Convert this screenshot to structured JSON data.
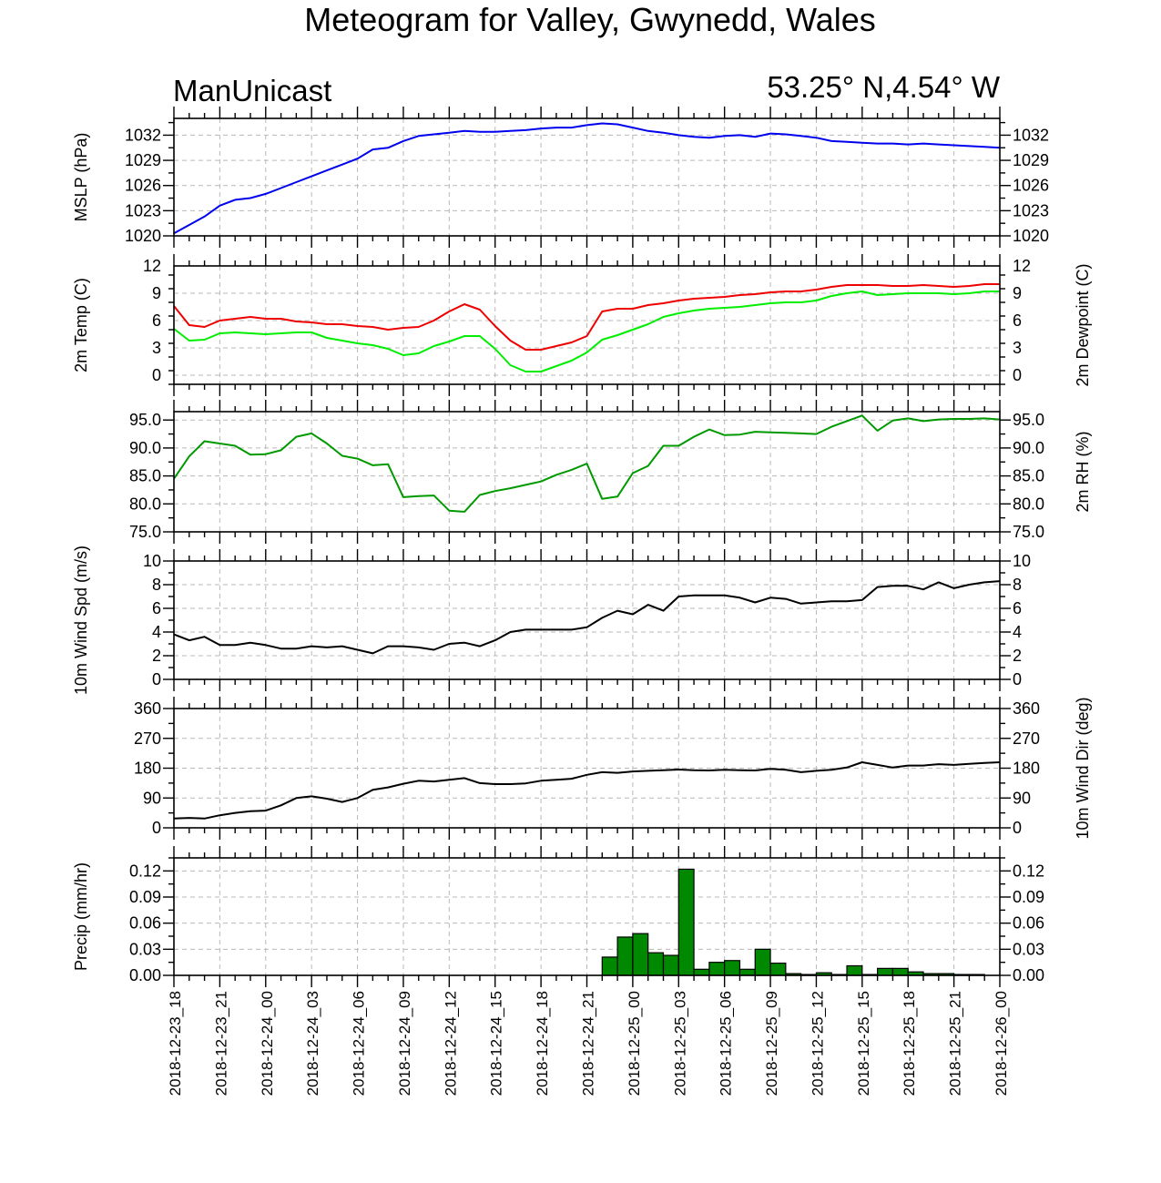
{
  "title": "Meteogram for Valley, Gwynedd, Wales",
  "model_label": "ManUnicast",
  "location_label": "53.25° N,4.54° W",
  "chart_data": {
    "type": "line",
    "x_tick_labels": [
      "2018-12-23_18",
      "2018-12-23_21",
      "2018-12-24_00",
      "2018-12-24_03",
      "2018-12-24_06",
      "2018-12-24_09",
      "2018-12-24_12",
      "2018-12-24_15",
      "2018-12-24_18",
      "2018-12-24_21",
      "2018-12-25_00",
      "2018-12-25_03",
      "2018-12-25_06",
      "2018-12-25_09",
      "2018-12-25_12",
      "2018-12-25_15",
      "2018-12-25_18",
      "2018-12-25_21",
      "2018-12-26_00"
    ],
    "x_hours_range": [
      0,
      54
    ],
    "panels": [
      {
        "id": "mslp",
        "type": "line",
        "ylabel": "MSLP (hPa)",
        "ylabel_right": "",
        "ylim": [
          1020,
          1034
        ],
        "yticks": [
          1020,
          1023,
          1026,
          1029,
          1032
        ],
        "tick_labels": [
          "1020",
          "1023",
          "1026",
          "1029",
          "1032"
        ],
        "tick_labels_right": true,
        "series": [
          {
            "color": "#0000ee",
            "x": [
              0,
              1,
              2,
              3,
              4,
              5,
              6,
              7,
              8,
              9,
              10,
              11,
              12,
              13,
              14,
              15,
              16,
              17,
              18,
              19,
              20,
              21,
              22,
              23,
              24,
              25,
              26,
              27,
              28,
              29,
              30,
              31,
              32,
              33,
              34,
              35,
              36,
              37,
              38,
              39,
              40,
              41,
              42,
              43,
              44,
              45,
              46,
              47,
              48,
              49,
              50,
              51,
              52,
              53,
              54
            ],
            "values": [
              1020.3,
              1021.3,
              1022.3,
              1023.6,
              1024.3,
              1024.5,
              1025.0,
              1025.7,
              1026.4,
              1027.1,
              1027.8,
              1028.5,
              1029.2,
              1030.3,
              1030.5,
              1031.3,
              1031.9,
              1032.1,
              1032.3,
              1032.5,
              1032.4,
              1032.4,
              1032.5,
              1032.6,
              1032.8,
              1032.9,
              1032.9,
              1033.2,
              1033.4,
              1033.3,
              1032.9,
              1032.5,
              1032.3,
              1032.0,
              1031.8,
              1031.7,
              1031.9,
              1032.0,
              1031.8,
              1032.2,
              1032.1,
              1031.9,
              1031.7,
              1031.3,
              1031.2,
              1031.1,
              1031.0,
              1031.0,
              1030.9,
              1031.0,
              1030.9,
              1030.8,
              1030.7,
              1030.6,
              1030.5
            ]
          }
        ]
      },
      {
        "id": "temp",
        "type": "line",
        "ylabel": "2m Temp (C)",
        "ylabel_right": "2m Dewpoint (C)",
        "ylim": [
          -1,
          12
        ],
        "yticks": [
          0,
          3,
          6,
          9,
          12
        ],
        "tick_labels": [
          "0",
          "3",
          "6",
          "9",
          "12"
        ],
        "tick_labels_right": true,
        "series": [
          {
            "color": "#ee0000",
            "x": [
              0,
              1,
              2,
              3,
              4,
              5,
              6,
              7,
              8,
              9,
              10,
              11,
              12,
              13,
              14,
              15,
              16,
              17,
              18,
              19,
              20,
              21,
              22,
              23,
              24,
              25,
              26,
              27,
              28,
              29,
              30,
              31,
              32,
              33,
              34,
              35,
              36,
              37,
              38,
              39,
              40,
              41,
              42,
              43,
              44,
              45,
              46,
              47,
              48,
              49,
              50,
              51,
              52,
              53,
              54
            ],
            "values": [
              7.6,
              5.5,
              5.3,
              6.0,
              6.2,
              6.4,
              6.2,
              6.2,
              5.9,
              5.8,
              5.6,
              5.6,
              5.4,
              5.3,
              5.0,
              5.2,
              5.3,
              6.0,
              7.0,
              7.8,
              7.2,
              5.4,
              3.8,
              2.8,
              2.8,
              3.2,
              3.6,
              4.3,
              7.0,
              7.3,
              7.3,
              7.7,
              7.9,
              8.2,
              8.4,
              8.5,
              8.6,
              8.8,
              8.9,
              9.1,
              9.2,
              9.2,
              9.4,
              9.7,
              9.9,
              9.9,
              9.9,
              9.8,
              9.8,
              9.9,
              9.8,
              9.7,
              9.8,
              10.0,
              10.0
            ]
          },
          {
            "color": "#00ee00",
            "x": [
              0,
              1,
              2,
              3,
              4,
              5,
              6,
              7,
              8,
              9,
              10,
              11,
              12,
              13,
              14,
              15,
              16,
              17,
              18,
              19,
              20,
              21,
              22,
              23,
              24,
              25,
              26,
              27,
              28,
              29,
              30,
              31,
              32,
              33,
              34,
              35,
              36,
              37,
              38,
              39,
              40,
              41,
              42,
              43,
              44,
              45,
              46,
              47,
              48,
              49,
              50,
              51,
              52,
              53,
              54
            ],
            "values": [
              5.1,
              3.8,
              3.9,
              4.6,
              4.7,
              4.6,
              4.5,
              4.6,
              4.7,
              4.7,
              4.1,
              3.8,
              3.5,
              3.3,
              2.9,
              2.2,
              2.4,
              3.2,
              3.7,
              4.3,
              4.3,
              2.9,
              1.1,
              0.4,
              0.4,
              1.0,
              1.6,
              2.5,
              3.9,
              4.4,
              5.0,
              5.6,
              6.4,
              6.8,
              7.1,
              7.3,
              7.4,
              7.5,
              7.7,
              7.9,
              8.0,
              8.0,
              8.2,
              8.7,
              9.0,
              9.2,
              8.8,
              8.9,
              9.0,
              9.0,
              9.0,
              8.9,
              9.0,
              9.2,
              9.2
            ]
          }
        ]
      },
      {
        "id": "rh",
        "type": "line",
        "ylabel": "",
        "ylabel_right": "2m RH (%)",
        "ylim": [
          75,
          96.5
        ],
        "yticks": [
          75,
          80,
          85,
          90,
          95
        ],
        "tick_labels": [
          "75.0",
          "80.0",
          "85.0",
          "90.0",
          "95.0"
        ],
        "tick_labels_right": true,
        "series": [
          {
            "color": "#009900",
            "x": [
              0,
              1,
              2,
              3,
              4,
              5,
              6,
              7,
              8,
              9,
              10,
              11,
              12,
              13,
              14,
              15,
              16,
              17,
              18,
              19,
              20,
              21,
              22,
              23,
              24,
              25,
              26,
              27,
              28,
              29,
              30,
              31,
              32,
              33,
              34,
              35,
              36,
              37,
              38,
              39,
              40,
              41,
              42,
              43,
              44,
              45,
              46,
              47,
              48,
              49,
              50,
              51,
              52,
              53,
              54
            ],
            "values": [
              84.5,
              88.5,
              91.2,
              90.8,
              90.4,
              88.8,
              88.9,
              89.6,
              92.0,
              92.6,
              90.8,
              88.6,
              88.1,
              86.9,
              87.1,
              81.2,
              81.4,
              81.5,
              78.8,
              78.6,
              81.6,
              82.3,
              82.8,
              83.4,
              84.0,
              85.2,
              86.1,
              87.2,
              80.9,
              81.3,
              85.5,
              86.8,
              90.4,
              90.4,
              92.0,
              93.3,
              92.3,
              92.4,
              92.9,
              92.8,
              92.7,
              92.6,
              92.5,
              93.8,
              94.8,
              95.8,
              93.1,
              94.9,
              95.3,
              94.8,
              95.1,
              95.2,
              95.2,
              95.3,
              95.1
            ]
          }
        ]
      },
      {
        "id": "wspd",
        "type": "line",
        "ylabel": "10m Wind Spd (m/s)",
        "ylabel_right": "",
        "ylim": [
          0,
          10
        ],
        "yticks": [
          0,
          2,
          4,
          6,
          8,
          10
        ],
        "tick_labels": [
          "0",
          "2",
          "4",
          "6",
          "8",
          "10"
        ],
        "tick_labels_right": true,
        "series": [
          {
            "color": "#000000",
            "x": [
              0,
              1,
              2,
              3,
              4,
              5,
              6,
              7,
              8,
              9,
              10,
              11,
              12,
              13,
              14,
              15,
              16,
              17,
              18,
              19,
              20,
              21,
              22,
              23,
              24,
              25,
              26,
              27,
              28,
              29,
              30,
              31,
              32,
              33,
              34,
              35,
              36,
              37,
              38,
              39,
              40,
              41,
              42,
              43,
              44,
              45,
              46,
              47,
              48,
              49,
              50,
              51,
              52,
              53,
              54
            ],
            "values": [
              3.8,
              3.3,
              3.6,
              2.9,
              2.9,
              3.1,
              2.9,
              2.6,
              2.6,
              2.8,
              2.7,
              2.8,
              2.5,
              2.2,
              2.8,
              2.8,
              2.7,
              2.5,
              3.0,
              3.1,
              2.8,
              3.3,
              4.0,
              4.2,
              4.2,
              4.2,
              4.2,
              4.4,
              5.2,
              5.8,
              5.5,
              6.3,
              5.8,
              7.0,
              7.1,
              7.1,
              7.1,
              6.9,
              6.5,
              6.9,
              6.8,
              6.4,
              6.5,
              6.6,
              6.6,
              6.7,
              7.8,
              7.9,
              7.9,
              7.6,
              8.2,
              7.7,
              8.0,
              8.2,
              8.3
            ]
          }
        ]
      },
      {
        "id": "wdir",
        "type": "line",
        "ylabel": "",
        "ylabel_right": "10m Wind Dir (deg)",
        "ylim": [
          0,
          360
        ],
        "yticks": [
          0,
          90,
          180,
          270,
          360
        ],
        "tick_labels": [
          "0",
          "90",
          "180",
          "270",
          "360"
        ],
        "tick_labels_right": true,
        "series": [
          {
            "color": "#000000",
            "x": [
              0,
              1,
              2,
              3,
              4,
              5,
              6,
              7,
              8,
              9,
              10,
              11,
              12,
              13,
              14,
              15,
              16,
              17,
              18,
              19,
              20,
              21,
              22,
              23,
              24,
              25,
              26,
              27,
              28,
              29,
              30,
              31,
              32,
              33,
              34,
              35,
              36,
              37,
              38,
              39,
              40,
              41,
              42,
              43,
              44,
              45,
              46,
              47,
              48,
              49,
              50,
              51,
              52,
              53,
              54
            ],
            "values": [
              28,
              30,
              28,
              38,
              45,
              50,
              52,
              68,
              90,
              95,
              88,
              78,
              90,
              115,
              122,
              133,
              142,
              140,
              145,
              150,
              135,
              132,
              132,
              134,
              142,
              145,
              148,
              160,
              168,
              166,
              170,
              172,
              174,
              176,
              174,
              173,
              175,
              174,
              173,
              178,
              175,
              168,
              172,
              175,
              182,
              198,
              190,
              182,
              188,
              188,
              192,
              190,
              193,
              196,
              198
            ]
          }
        ]
      },
      {
        "id": "precip",
        "type": "bar",
        "ylabel": "Precip (mm/hr)",
        "ylabel_right": "",
        "ylim": [
          0,
          0.135
        ],
        "yticks": [
          0,
          0.03,
          0.06,
          0.09,
          0.12
        ],
        "tick_labels": [
          "0.00",
          "0.03",
          "0.06",
          "0.09",
          "0.12"
        ],
        "tick_labels_right": true,
        "bar_color": "#008800",
        "x": [
          28,
          29,
          30,
          31,
          32,
          33,
          34,
          35,
          36,
          37,
          38,
          39,
          40,
          41,
          42,
          43,
          44,
          45,
          46,
          47,
          48,
          49,
          50,
          51,
          52
        ],
        "values": [
          0.021,
          0.044,
          0.048,
          0.026,
          0.023,
          0.122,
          0.007,
          0.015,
          0.017,
          0.007,
          0.03,
          0.014,
          0.002,
          0.001,
          0.003,
          0.001,
          0.011,
          0.001,
          0.008,
          0.008,
          0.004,
          0.002,
          0.002,
          0.001,
          0.001
        ]
      }
    ]
  }
}
